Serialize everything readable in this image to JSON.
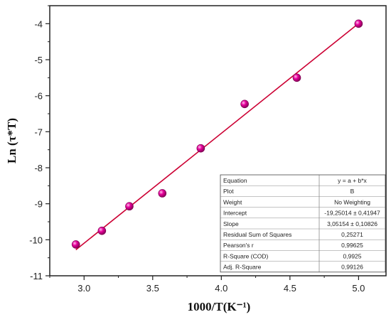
{
  "chart_data": {
    "type": "scatter",
    "xlabel": "1000/T(K⁻¹)",
    "ylabel": "Ln (τ*T)",
    "xlim": [
      2.75,
      5.2
    ],
    "ylim": [
      -11,
      -3.5
    ],
    "xticks": [
      "3.0",
      "3.5",
      "4.0",
      "4.5",
      "5.0"
    ],
    "yticks": [
      "-4",
      "-5",
      "-6",
      "-7",
      "-8",
      "-9",
      "-10",
      "-11"
    ],
    "x": [
      2.94,
      3.13,
      3.33,
      3.57,
      3.85,
      4.17,
      4.55,
      5.0
    ],
    "y": [
      -10.13,
      -9.75,
      -9.07,
      -8.71,
      -7.46,
      -6.23,
      -5.5,
      -4.0
    ],
    "fit": {
      "intercept": -19.25014,
      "slope": 3.05154,
      "x_range": [
        2.94,
        5.0
      ]
    },
    "grid": false,
    "marker_color": "#e6009a",
    "line_color": "#cc0033",
    "stats_table": [
      {
        "label": "Equation",
        "value": "y = a + b*x"
      },
      {
        "label": "Plot",
        "value": "B"
      },
      {
        "label": "Weight",
        "value": "No Weighting"
      },
      {
        "label": "Intercept",
        "value": "-19,25014 ± 0,41947"
      },
      {
        "label": "Slope",
        "value": "3,05154 ± 0,10826"
      },
      {
        "label": "Residual Sum of Squares",
        "value": "0,25271"
      },
      {
        "label": "Pearson's r",
        "value": "0,99625"
      },
      {
        "label": "R-Square (COD)",
        "value": "0,9925"
      },
      {
        "label": "Adj. R-Square",
        "value": "0,99126"
      }
    ]
  }
}
